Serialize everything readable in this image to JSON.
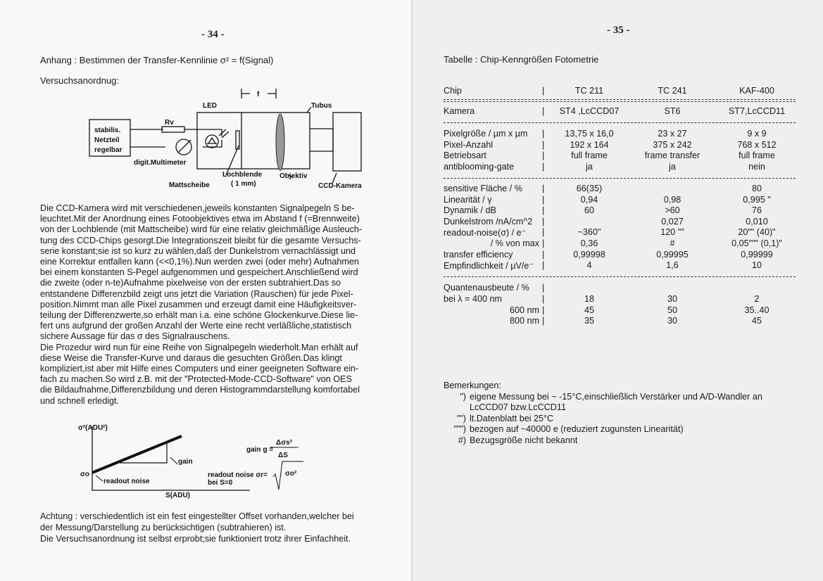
{
  "left_page": {
    "page_number": "- 34 -",
    "heading": "Anhang : Bestimmen der Transfer-Kennlinie σ² = f(Signal)",
    "setup_label": "Versuchsanordnug:",
    "diagram": {
      "f": "f",
      "led": "LED",
      "tubus": "Tubus",
      "rv": "Rv",
      "psu": [
        "stabilis.",
        "Netzteil",
        "regelbar"
      ],
      "multimeter": "digit.Multimeter",
      "lochblende": [
        "Lochblende",
        "( 1 mm)"
      ],
      "mattscheibe": "Mattscheibe",
      "objektiv": "Objektiv",
      "camera": "CCD-Kamera"
    },
    "paragraph_lines": [
      "Die CCD-Kamera wird mit verschiedenen,jeweils konstanten Signalpegeln S be-",
      "leuchtet.Mit der Anordnung eines Fotoobjektives etwa im Abstand f (=Brennweite)",
      "von der Lochblende (mit Mattscheibe) wird für eine relativ gleichmäßige Ausleuch-",
      "tung des CCD-Chips gesorgt.Die Integrationszeit bleibt für die gesamte Versuchs-",
      "serie konstant;sie ist so kurz zu wählen,daß der Dunkelstrom vernachlässigt und",
      "eine Korrektur entfallen kann (<<0,1%).Nun werden zwei (oder mehr) Aufnahmen",
      "bei einem konstanten S-Pegel aufgenommen und gespeichert.Anschließend wird",
      "die zweite (oder n-te)Aufnahme pixelweise von der ersten subtrahiert.Das so",
      "entstandene Differenzbild zeigt uns jetzt die Variation (Rauschen) für jede Pixel-",
      "position.Nimmt man alle Pixel zusammen und erzeugt damit eine Häufigkeitsver-",
      "teilung der Differenzwerte,so erhält man i.a. eine schöne Glockenkurve.Diese lie-",
      "fert uns aufgrund der großen Anzahl der Werte eine recht verläßliche,statistisch",
      "sichere Aussage für das σ des Signalrauschens.",
      "Die Prozedur wird nun für eine Reihe von Signalpegeln wiederholt.Man erhält auf",
      "diese Weise die Transfer-Kurve und daraus die gesuchten Größen.Das klingt",
      "kompliziert,ist aber mit Hilfe eines Computers und einer geeigneten Software ein-",
      "fach zu machen.So wird z.B. mit der \"Protected-Mode-CCD-Software\" von OES",
      "die Bildaufnahme,Differenzbildung und deren Histogrammdarstellung komfortabel",
      "und schnell erledigt."
    ],
    "graph": {
      "y_axis": "σ²(ADU²)",
      "x_axis": "S(ADU)",
      "sigma0": "σo",
      "gain_label": "gain",
      "readout_label": "readout noise",
      "gain_formula": "gain g =",
      "gain_num": "Δσs²",
      "gain_den": "ΔS",
      "readout_formula": "readout noise σr=",
      "readout_root": "σo²",
      "readout_cond": "bei S=0"
    },
    "footer_lines": [
      "Achtung : verschiedentlich ist ein fest eingestellter Offset vorhanden,welcher bei",
      "der Messung/Darstellung zu berücksichtigen (subtrahieren) ist.",
      "Die Versuchsanordnung ist selbst erprobt;sie funktioniert trotz ihrer Einfachheit."
    ]
  },
  "right_page": {
    "page_number": "- 35 -",
    "title": "Tabelle : Chip-Kenngrößen Fotometrie",
    "header": {
      "label": "Chip",
      "cols": [
        "TC 211",
        "TC 241",
        "KAF-400"
      ]
    },
    "camera_row": {
      "label": "Kamera",
      "cols": [
        "ST4 ,LcCCD07",
        "ST6",
        "ST7,LcCCD11"
      ]
    },
    "group1": [
      {
        "label": "Pixelgröße / µm x µm",
        "cols": [
          "13,75 x 16,0",
          "23 x 27",
          "9 x 9"
        ]
      },
      {
        "label": "Pixel-Anzahl",
        "cols": [
          "192 x 164",
          "375 x 242",
          "768 x 512"
        ]
      },
      {
        "label": "Betriebsart",
        "cols": [
          "full frame",
          "frame transfer",
          "full frame"
        ]
      },
      {
        "label": "antiblooming-gate",
        "cols": [
          "ja",
          "ja",
          "nein"
        ]
      }
    ],
    "group2": [
      {
        "label": "sensitive Fläche / %",
        "cols": [
          "66(35)",
          "",
          "80"
        ]
      },
      {
        "label": "Linearität / γ",
        "cols": [
          "0,94",
          "0,98",
          "0,995 \""
        ]
      },
      {
        "label": "Dynamik / dB",
        "cols": [
          "60",
          ">60",
          "76"
        ]
      },
      {
        "label": "Dunkelstrom /nA/cm^2",
        "cols": [
          "",
          "0,027",
          "0,010"
        ]
      },
      {
        "label": "readout-noise(σ) / e⁻",
        "cols": [
          "~360\"",
          "120 \"\"",
          "20\"\" (40)\""
        ]
      },
      {
        "label": "/ % von max",
        "cols": [
          "0,36",
          "#",
          "0,05\"\"\" (0,1)\""
        ]
      },
      {
        "label": "transfer efficiency",
        "cols": [
          "0,99998",
          "0,99995",
          "0,99999"
        ]
      },
      {
        "label": "Empfindlichkeit / µV/e⁻",
        "cols": [
          "4",
          "1,6",
          "10"
        ]
      }
    ],
    "group3_title": "Quantenausbeute / %",
    "group3": [
      {
        "label": "bei  λ = 400 nm",
        "cols": [
          "18",
          "30",
          "2"
        ]
      },
      {
        "label": "600 nm",
        "cols": [
          "45",
          "50",
          "35..40"
        ]
      },
      {
        "label": "800 nm",
        "cols": [
          "35",
          "30",
          "45"
        ]
      }
    ],
    "remarks_title": "Bemerkungen:",
    "remarks": [
      {
        "mark": "\")",
        "text": "eigene Messung bei ~ -15°C,einschließlich Verstärker und A/D-Wandler an"
      },
      {
        "mark": "",
        "text": "LcCCD07 bzw.LcCCD11"
      },
      {
        "mark": "\"\")",
        "text": "lt.Datenblatt bei 25°C"
      },
      {
        "mark": "\"\"\")",
        "text": "bezogen auf ~40000 e (reduziert zugunsten Linearität)"
      },
      {
        "mark": "#)",
        "text": "Bezugsgröße nicht bekannt"
      }
    ]
  }
}
